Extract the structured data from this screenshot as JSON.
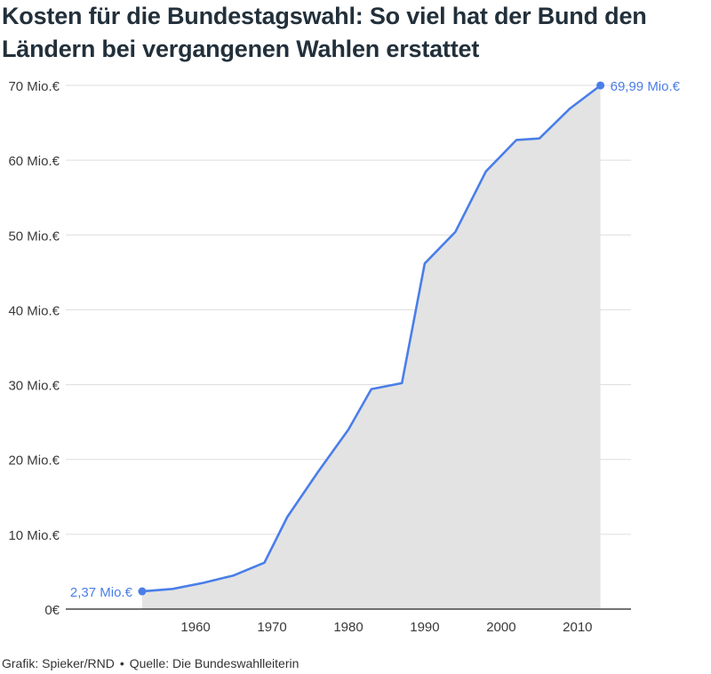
{
  "title": "Kosten für die Bundestagswahl: So viel hat der Bund den Ländern bei vergangenen Wahlen erstattet",
  "footer": {
    "credit": "Grafik: Spieker/RND",
    "separator": "•",
    "source": "Quelle: Die Bundeswahlleiterin"
  },
  "colors": {
    "line": "#4a7ee8",
    "area": "#e3e3e3",
    "grid": "#dddddd",
    "axis": "#222222",
    "label": "#3a3a3a"
  },
  "chart_data": {
    "type": "area",
    "title": "Kosten für die Bundestagswahl: So viel hat der Bund den Ländern bei vergangenen Wahlen erstattet",
    "xlabel": "",
    "ylabel": "",
    "xlim": [
      1943,
      2017
    ],
    "ylim": [
      0,
      70
    ],
    "grid": true,
    "legend": "none",
    "y_ticks": [
      {
        "value": 0,
        "label": "0€"
      },
      {
        "value": 10,
        "label": "10 Mio.€"
      },
      {
        "value": 20,
        "label": "20 Mio.€"
      },
      {
        "value": 30,
        "label": "30 Mio.€"
      },
      {
        "value": 40,
        "label": "40 Mio.€"
      },
      {
        "value": 50,
        "label": "50 Mio.€"
      },
      {
        "value": 60,
        "label": "60 Mio.€"
      },
      {
        "value": 70,
        "label": "70 Mio.€"
      }
    ],
    "x_ticks": [
      {
        "value": 1960,
        "label": "1960"
      },
      {
        "value": 1970,
        "label": "1970"
      },
      {
        "value": 1980,
        "label": "1980"
      },
      {
        "value": 1990,
        "label": "1990"
      },
      {
        "value": 2000,
        "label": "2000"
      },
      {
        "value": 2010,
        "label": "2010"
      }
    ],
    "series": [
      {
        "x": [
          1953,
          1957,
          1961,
          1965,
          1969,
          1972,
          1976,
          1980,
          1983,
          1987,
          1990,
          1994,
          1998,
          2002,
          2005,
          2009,
          2013
        ],
        "y": [
          2.37,
          2.7,
          3.5,
          4.5,
          6.2,
          12.3,
          18.3,
          24.0,
          29.4,
          30.2,
          46.2,
          50.4,
          58.5,
          62.7,
          62.9,
          66.9,
          69.99
        ]
      }
    ],
    "annotations": [
      {
        "x": 1953,
        "y": 2.37,
        "text": "2,37 Mio.€",
        "side": "left"
      },
      {
        "x": 2013,
        "y": 69.99,
        "text": "69,99 Mio.€",
        "side": "right"
      }
    ]
  }
}
